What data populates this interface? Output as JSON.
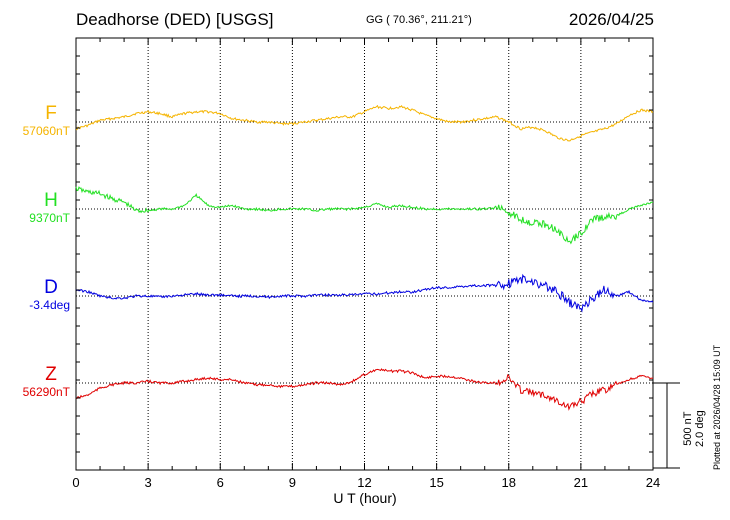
{
  "header": {
    "title": "Deadhorse (DED)  [USGS]",
    "coords": "GG ( 70.36°, 211.21°)",
    "date": "2026/04/25"
  },
  "footer": {
    "xlabel": "U T (hour)",
    "plotted": "Plotted at 2026/04/28 15:09 UT"
  },
  "scale": {
    "line1": "500 nT",
    "line2": "2.0 deg"
  },
  "colors": {
    "F": "#f5b400",
    "H": "#22e022",
    "D": "#0000e0",
    "Z": "#e00000"
  },
  "chart_data": {
    "type": "line",
    "xlim": [
      0,
      24
    ],
    "xticks": [
      "0",
      "3",
      "6",
      "9",
      "12",
      "15",
      "18",
      "21",
      "24"
    ],
    "grid": true,
    "scale_bar": "500 nT / 2.0 deg",
    "series": [
      {
        "name": "F",
        "baseline_label": "57060nT",
        "unit": "nT",
        "x": [
          0,
          0.5,
          1,
          1.5,
          2,
          2.5,
          3,
          3.5,
          4,
          4.5,
          5,
          5.5,
          6,
          6.5,
          7,
          7.5,
          8,
          8.5,
          9,
          9.5,
          10,
          10.5,
          11,
          11.5,
          12,
          12.5,
          13,
          13.5,
          14,
          14.5,
          15,
          15.5,
          16,
          16.5,
          17,
          17.5,
          18,
          18.5,
          19,
          19.5,
          20,
          20.5,
          21,
          21.5,
          22,
          22.5,
          23,
          23.5,
          24
        ],
        "values": [
          -40,
          -20,
          10,
          20,
          30,
          50,
          60,
          50,
          30,
          50,
          60,
          60,
          50,
          20,
          10,
          0,
          0,
          -10,
          -10,
          0,
          10,
          20,
          30,
          30,
          60,
          90,
          80,
          90,
          70,
          40,
          20,
          0,
          0,
          10,
          20,
          30,
          0,
          -40,
          -30,
          -50,
          -90,
          -110,
          -80,
          -60,
          -40,
          -10,
          40,
          70,
          60
        ]
      },
      {
        "name": "H",
        "baseline_label": "9370nT",
        "unit": "nT",
        "x": [
          0,
          0.5,
          1,
          1.5,
          2,
          2.5,
          3,
          3.5,
          4,
          4.5,
          5,
          5.5,
          6,
          6.5,
          7,
          7.5,
          8,
          8.5,
          9,
          9.5,
          10,
          10.5,
          11,
          11.5,
          12,
          12.5,
          13,
          13.5,
          14,
          14.5,
          15,
          15.5,
          16,
          16.5,
          17,
          17.5,
          18,
          18.5,
          19,
          19.5,
          20,
          20.5,
          21,
          21.5,
          22,
          22.5,
          23,
          23.5,
          24
        ],
        "values": [
          120,
          100,
          90,
          60,
          40,
          -10,
          -10,
          0,
          0,
          20,
          80,
          20,
          10,
          20,
          0,
          0,
          -10,
          0,
          0,
          0,
          -10,
          0,
          0,
          0,
          10,
          30,
          10,
          20,
          10,
          0,
          0,
          0,
          0,
          0,
          0,
          10,
          -20,
          -60,
          -80,
          -90,
          -120,
          -200,
          -140,
          -60,
          -50,
          -40,
          0,
          20,
          40
        ]
      },
      {
        "name": "D",
        "baseline_label": "-3.4deg",
        "unit": "deg",
        "x": [
          0,
          0.5,
          1,
          1.5,
          2,
          2.5,
          3,
          3.5,
          4,
          4.5,
          5,
          5.5,
          6,
          6.5,
          7,
          7.5,
          8,
          8.5,
          9,
          9.5,
          10,
          10.5,
          11,
          11.5,
          12,
          12.5,
          13,
          13.5,
          14,
          14.5,
          15,
          15.5,
          16,
          16.5,
          17,
          17.5,
          18,
          18.5,
          19,
          19.5,
          20,
          20.5,
          21,
          21.5,
          22,
          22.5,
          23,
          23.5,
          24
        ],
        "values": [
          0.3,
          0.2,
          0.0,
          -0.1,
          -0.1,
          0.0,
          0.0,
          -0.05,
          0.0,
          0.05,
          0.1,
          0.05,
          0.05,
          0.0,
          0.0,
          0.0,
          -0.05,
          0.0,
          0.0,
          0.0,
          0.05,
          0.05,
          0.05,
          0.05,
          0.1,
          0.1,
          0.15,
          0.2,
          0.2,
          0.3,
          0.4,
          0.4,
          0.45,
          0.5,
          0.5,
          0.5,
          0.6,
          0.8,
          0.7,
          0.5,
          0.2,
          -0.3,
          -0.6,
          -0.1,
          0.3,
          0.0,
          0.2,
          -0.2,
          -0.3
        ]
      },
      {
        "name": "Z",
        "baseline_label": "56290nT",
        "unit": "nT",
        "x": [
          0,
          0.5,
          1,
          1.5,
          2,
          2.5,
          3,
          3.5,
          4,
          4.5,
          5,
          5.5,
          6,
          6.5,
          7,
          7.5,
          8,
          8.5,
          9,
          9.5,
          10,
          10.5,
          11,
          11.5,
          12,
          12.5,
          13,
          13.5,
          14,
          14.5,
          15,
          15.5,
          16,
          16.5,
          17,
          17.5,
          18,
          18.5,
          19,
          19.5,
          20,
          20.5,
          21,
          21.5,
          22,
          22.5,
          23,
          23.5,
          24
        ],
        "values": [
          -90,
          -70,
          -30,
          -10,
          0,
          0,
          10,
          0,
          0,
          10,
          20,
          30,
          20,
          20,
          0,
          -10,
          -10,
          -20,
          -20,
          -10,
          0,
          0,
          -10,
          10,
          50,
          80,
          70,
          70,
          60,
          30,
          40,
          40,
          30,
          10,
          0,
          0,
          30,
          -40,
          -60,
          -70,
          -100,
          -140,
          -110,
          -60,
          -40,
          -10,
          20,
          40,
          30
        ]
      }
    ]
  }
}
